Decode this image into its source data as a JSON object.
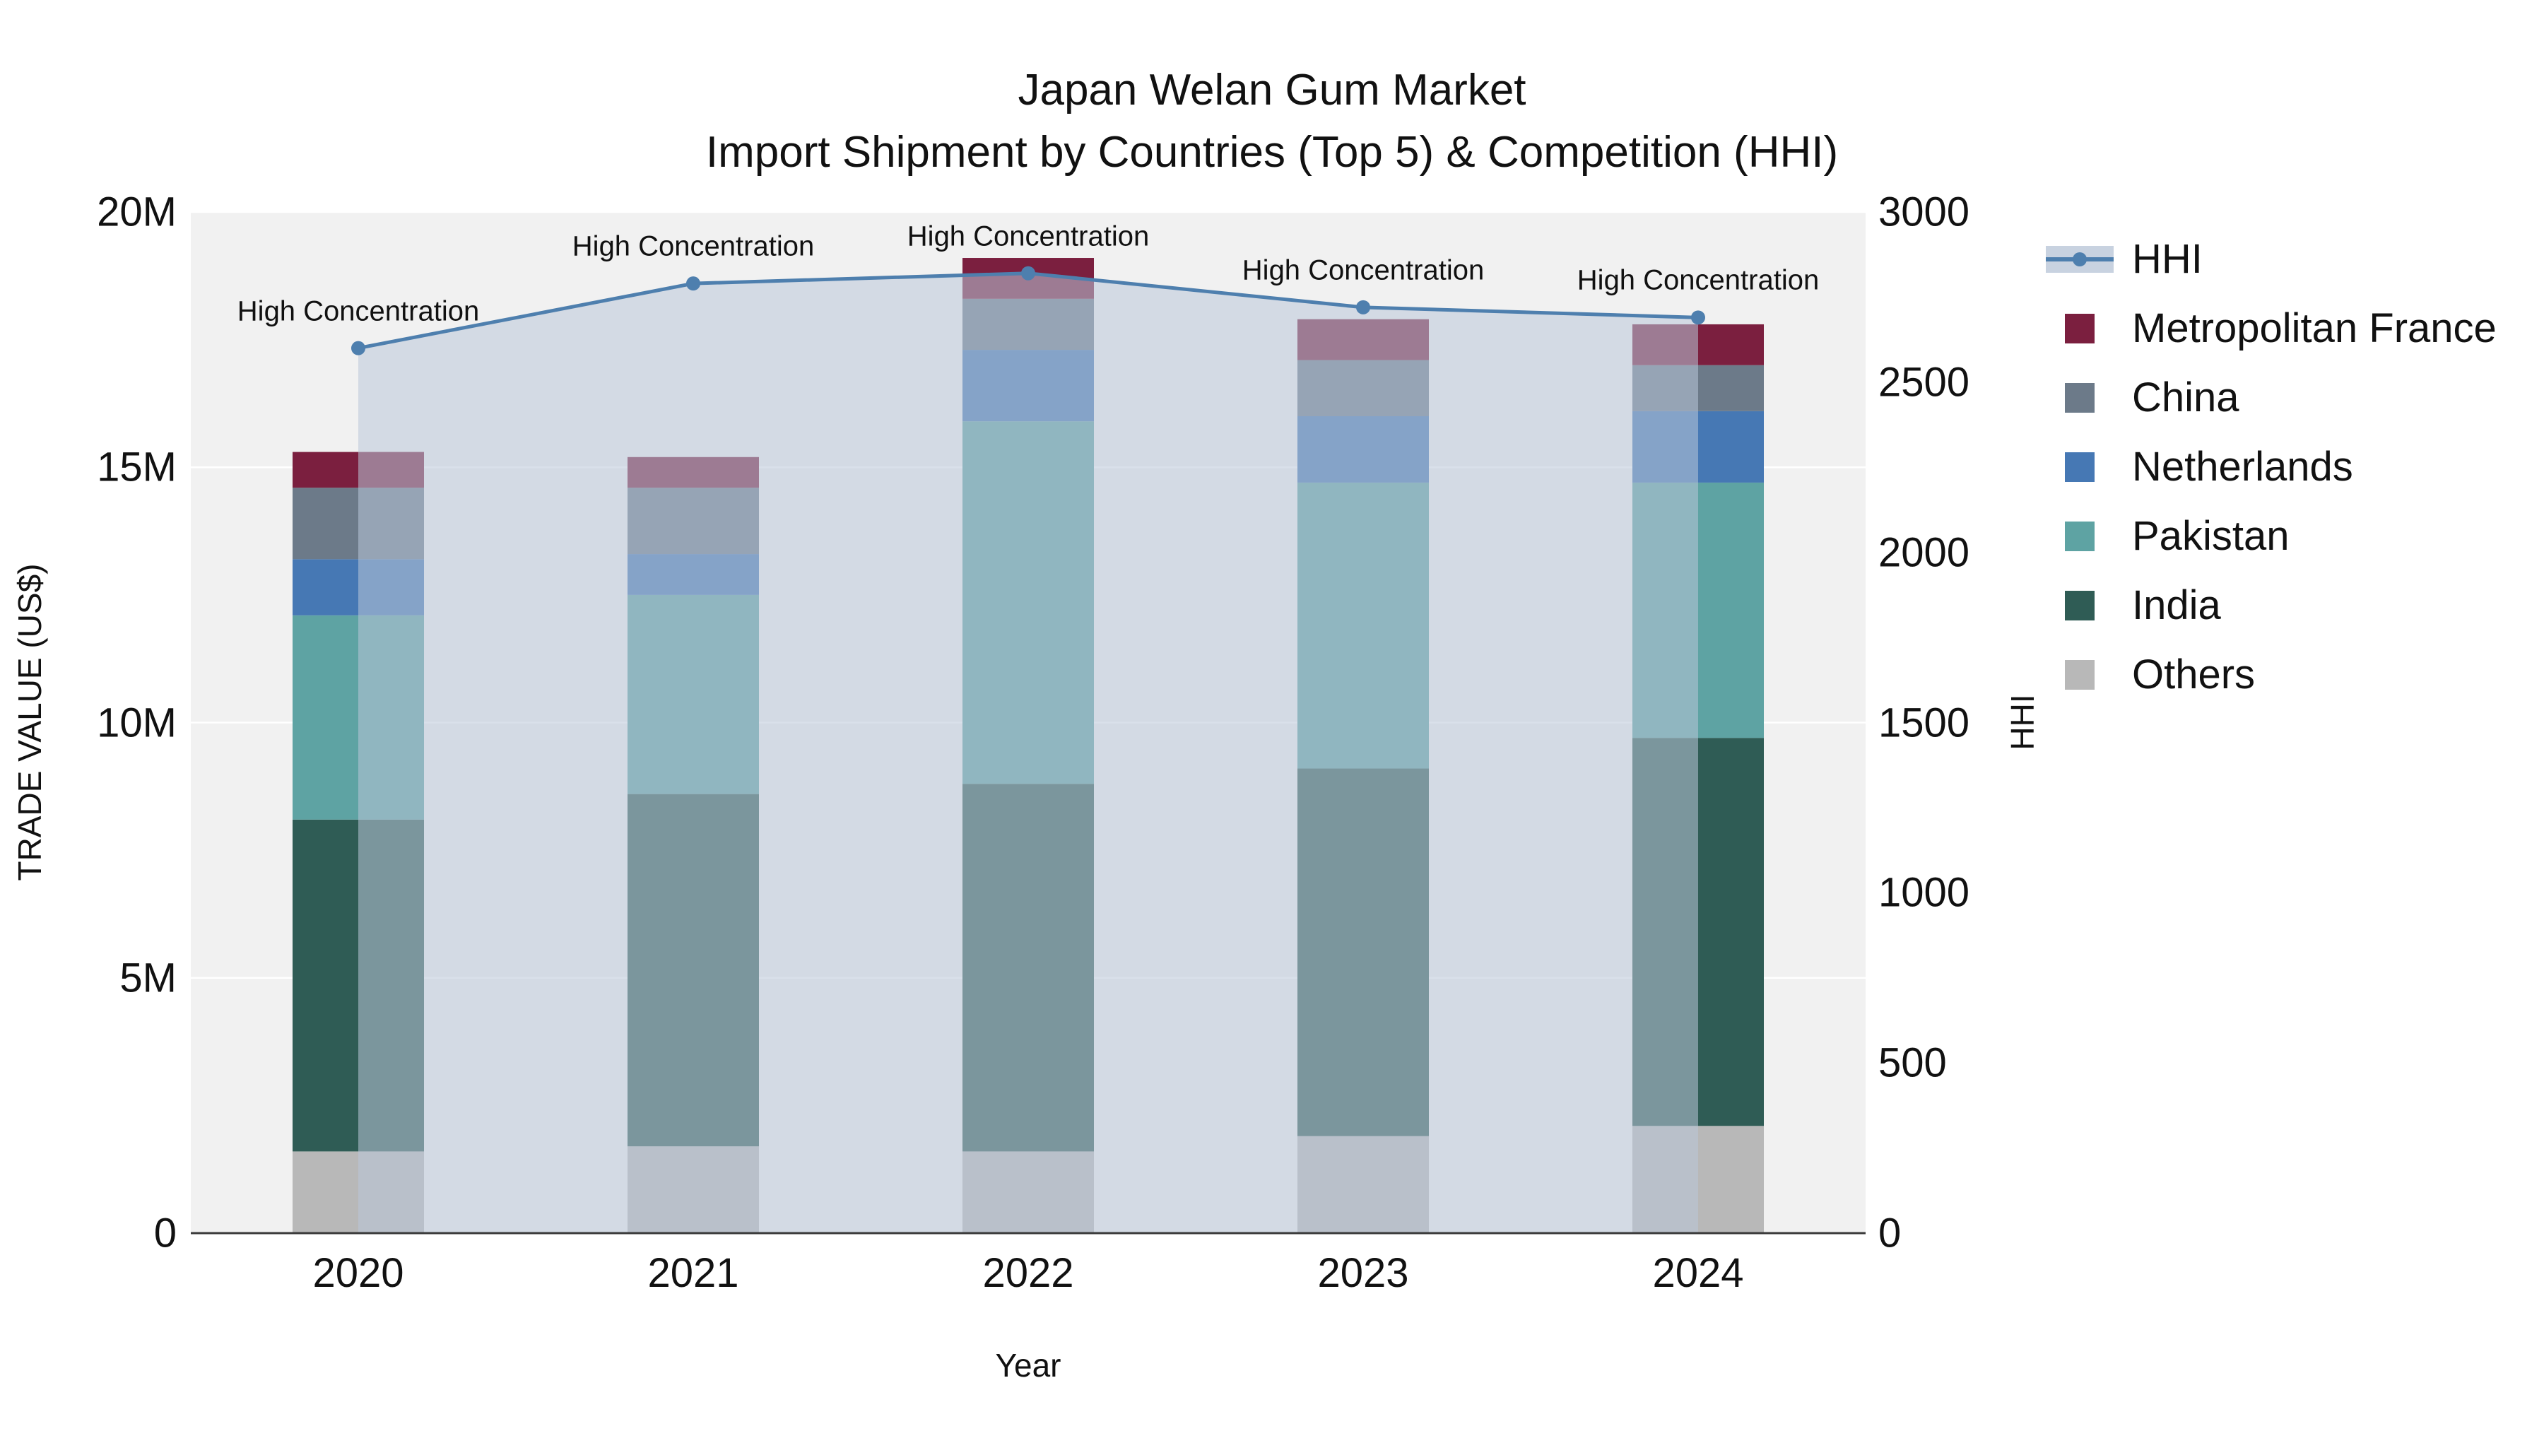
{
  "title": {
    "line1": "Japan Welan Gum Market",
    "line2": "Import Shipment by Countries (Top 5) & Competition (HHI)"
  },
  "axes": {
    "y_left_label": "TRADE VALUE (US$)",
    "y_right_label": "HHI",
    "x_label": "Year",
    "y_left_ticks": [
      "0",
      "5M",
      "10M",
      "15M",
      "20M"
    ],
    "y_left_tick_values": [
      0,
      5000000,
      10000000,
      15000000,
      20000000
    ],
    "y_right_ticks": [
      "0",
      "500",
      "1000",
      "1500",
      "2000",
      "2500",
      "3000"
    ],
    "y_right_tick_values": [
      0,
      500,
      1000,
      1500,
      2000,
      2500,
      3000
    ]
  },
  "legend": {
    "items": [
      {
        "label": "HHI",
        "type": "line",
        "color": "#4e7fae",
        "fill": "rgba(186,199,216,0.8)"
      },
      {
        "label": "Metropolitan France",
        "type": "swatch",
        "color": "#7b1f3f"
      },
      {
        "label": "China",
        "type": "swatch",
        "color": "#6c7a89"
      },
      {
        "label": "Netherlands",
        "type": "swatch",
        "color": "#4678b4"
      },
      {
        "label": "Pakistan",
        "type": "swatch",
        "color": "#5ea3a3"
      },
      {
        "label": "India",
        "type": "swatch",
        "color": "#2f5c55"
      },
      {
        "label": "Others",
        "type": "swatch",
        "color": "#b8b8b8"
      }
    ]
  },
  "chart_data": {
    "type": "bar",
    "variant": "stacked bars (trade value, left axis) + HHI line with area fill (right axis)",
    "title": "Japan Welan Gum Market — Import Shipment by Countries (Top 5) & Competition (HHI)",
    "xlabel": "Year",
    "ylabel_left": "TRADE VALUE (US$)",
    "ylabel_right": "HHI",
    "y_left_range": [
      0,
      20000000
    ],
    "y_right_range": [
      0,
      3000
    ],
    "grid": true,
    "legend_position": "right",
    "categories": [
      "2020",
      "2021",
      "2022",
      "2023",
      "2024"
    ],
    "series": [
      {
        "name": "Others",
        "color": "#b8b8b8",
        "values": [
          1600000,
          1700000,
          1600000,
          1900000,
          2100000
        ]
      },
      {
        "name": "India",
        "color": "#2f5c55",
        "values": [
          6500000,
          6900000,
          7200000,
          7200000,
          7600000
        ]
      },
      {
        "name": "Pakistan",
        "color": "#5ea3a3",
        "values": [
          4000000,
          3900000,
          7100000,
          5600000,
          5000000
        ]
      },
      {
        "name": "Netherlands",
        "color": "#4678b4",
        "values": [
          1100000,
          800000,
          1400000,
          1300000,
          1400000
        ]
      },
      {
        "name": "China",
        "color": "#6c7a89",
        "values": [
          1400000,
          1300000,
          1000000,
          1100000,
          900000
        ]
      },
      {
        "name": "Metropolitan France",
        "color": "#7b1f3f",
        "values": [
          700000,
          600000,
          800000,
          800000,
          800000
        ]
      }
    ],
    "bar_totals": [
      15300000,
      15200000,
      19100000,
      17900000,
      17800000
    ],
    "hhi_line": {
      "name": "HHI",
      "axis": "right",
      "color": "#4e7fae",
      "fill_color": "rgba(186,199,216,0.55)",
      "values": [
        2600,
        2790,
        2820,
        2720,
        2690
      ]
    },
    "annotations": [
      "High Concentration",
      "High Concentration",
      "High Concentration",
      "High Concentration",
      "High Concentration"
    ]
  }
}
